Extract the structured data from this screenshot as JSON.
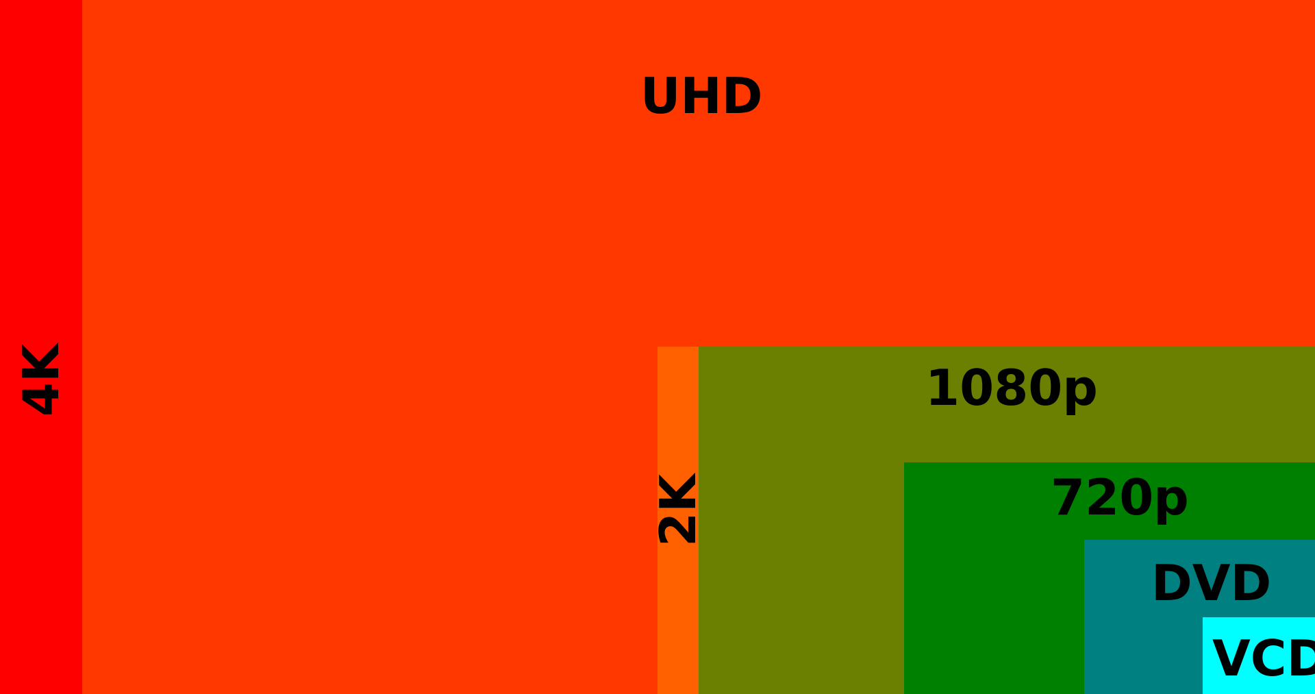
{
  "resolutions": [
    {
      "id": "4k",
      "label": "4K",
      "color": "#ff0000",
      "orientation": "vertical"
    },
    {
      "id": "uhd",
      "label": "UHD",
      "color": "#ff3800",
      "orientation": "horizontal"
    },
    {
      "id": "2k",
      "label": "2K",
      "color": "#ff6000",
      "orientation": "vertical"
    },
    {
      "id": "1080p",
      "label": "1080p",
      "color": "#6b8000",
      "orientation": "horizontal"
    },
    {
      "id": "720p",
      "label": "720p",
      "color": "#008000",
      "orientation": "horizontal"
    },
    {
      "id": "dvd",
      "label": "DVD",
      "color": "#008080",
      "orientation": "horizontal"
    },
    {
      "id": "vcd",
      "label": "VCD",
      "color": "#00ffff",
      "orientation": "horizontal"
    }
  ]
}
